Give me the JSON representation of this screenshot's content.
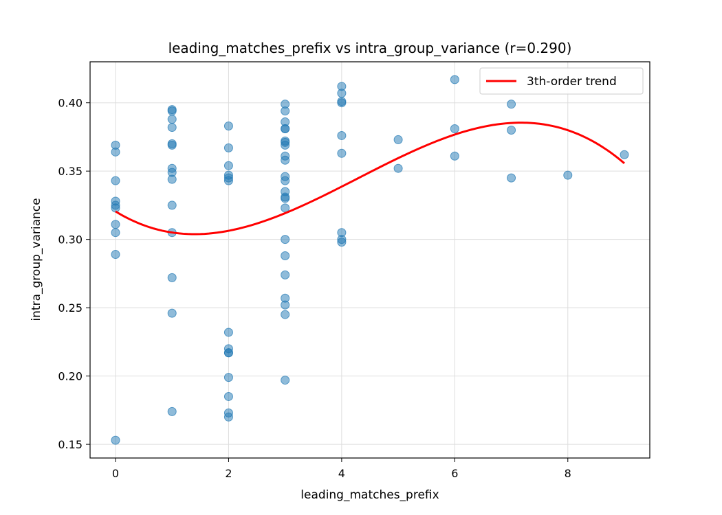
{
  "chart_data": {
    "type": "scatter",
    "title": "leading_matches_prefix vs intra_group_variance (r=0.290)",
    "xlabel": "leading_matches_prefix",
    "ylabel": "intra_group_variance",
    "xlim": [
      -0.45,
      9.45
    ],
    "ylim": [
      0.14,
      0.43
    ],
    "xticks": [
      0,
      2,
      4,
      6,
      8
    ],
    "xtick_labels": [
      "0",
      "2",
      "4",
      "6",
      "8"
    ],
    "yticks": [
      0.15,
      0.2,
      0.25,
      0.3,
      0.35,
      0.4
    ],
    "ytick_labels": [
      "0.15",
      "0.20",
      "0.25",
      "0.30",
      "0.35",
      "0.40"
    ],
    "grid": true,
    "legend_position": "top-right",
    "series": [
      {
        "kind": "scatter",
        "color": "#1f77b4",
        "opacity": 0.5,
        "points": [
          [
            0,
            0.369
          ],
          [
            0,
            0.364
          ],
          [
            0,
            0.343
          ],
          [
            0,
            0.328
          ],
          [
            0,
            0.325
          ],
          [
            0,
            0.323
          ],
          [
            0,
            0.311
          ],
          [
            0,
            0.305
          ],
          [
            0,
            0.289
          ],
          [
            0,
            0.153
          ],
          [
            1,
            0.395
          ],
          [
            1,
            0.394
          ],
          [
            1,
            0.388
          ],
          [
            1,
            0.382
          ],
          [
            1,
            0.37
          ],
          [
            1,
            0.369
          ],
          [
            1,
            0.352
          ],
          [
            1,
            0.349
          ],
          [
            1,
            0.344
          ],
          [
            1,
            0.325
          ],
          [
            1,
            0.305
          ],
          [
            1,
            0.272
          ],
          [
            1,
            0.246
          ],
          [
            1,
            0.174
          ],
          [
            2,
            0.383
          ],
          [
            2,
            0.367
          ],
          [
            2,
            0.354
          ],
          [
            2,
            0.347
          ],
          [
            2,
            0.345
          ],
          [
            2,
            0.343
          ],
          [
            2,
            0.232
          ],
          [
            2,
            0.22
          ],
          [
            2,
            0.217
          ],
          [
            2,
            0.217
          ],
          [
            2,
            0.199
          ],
          [
            2,
            0.185
          ],
          [
            2,
            0.173
          ],
          [
            2,
            0.17
          ],
          [
            3,
            0.399
          ],
          [
            3,
            0.394
          ],
          [
            3,
            0.386
          ],
          [
            3,
            0.381
          ],
          [
            3,
            0.381
          ],
          [
            3,
            0.372
          ],
          [
            3,
            0.371
          ],
          [
            3,
            0.369
          ],
          [
            3,
            0.361
          ],
          [
            3,
            0.358
          ],
          [
            3,
            0.346
          ],
          [
            3,
            0.343
          ],
          [
            3,
            0.335
          ],
          [
            3,
            0.331
          ],
          [
            3,
            0.33
          ],
          [
            3,
            0.323
          ],
          [
            3,
            0.3
          ],
          [
            3,
            0.288
          ],
          [
            3,
            0.274
          ],
          [
            3,
            0.257
          ],
          [
            3,
            0.252
          ],
          [
            3,
            0.245
          ],
          [
            3,
            0.197
          ],
          [
            4,
            0.412
          ],
          [
            4,
            0.407
          ],
          [
            4,
            0.401
          ],
          [
            4,
            0.4
          ],
          [
            4,
            0.376
          ],
          [
            4,
            0.363
          ],
          [
            4,
            0.305
          ],
          [
            4,
            0.3
          ],
          [
            4,
            0.298
          ],
          [
            5,
            0.373
          ],
          [
            5,
            0.352
          ],
          [
            6,
            0.417
          ],
          [
            6,
            0.381
          ],
          [
            6,
            0.361
          ],
          [
            7,
            0.399
          ],
          [
            7,
            0.38
          ],
          [
            7,
            0.345
          ],
          [
            8,
            0.347
          ],
          [
            9,
            0.362
          ]
        ]
      },
      {
        "kind": "line",
        "name": "3th-order trend",
        "color": "#ff0000",
        "x_range": [
          0,
          9
        ],
        "points": [
          [
            0,
            0.3205
          ],
          [
            0.5,
            0.3105
          ],
          [
            1,
            0.3045
          ],
          [
            1.5,
            0.3033
          ],
          [
            2,
            0.3074
          ],
          [
            2.5,
            0.3158
          ],
          [
            3,
            0.3275
          ],
          [
            3.5,
            0.3412
          ],
          [
            4,
            0.3555
          ],
          [
            4.5,
            0.3692
          ],
          [
            5,
            0.3806
          ],
          [
            5.5,
            0.3883
          ],
          [
            6,
            0.391
          ],
          [
            6.5,
            0.388
          ],
          [
            7,
            0.3782
          ],
          [
            7.5,
            0.3606
          ],
          [
            8,
            0.3724
          ],
          [
            8.5,
            0.3543
          ],
          [
            9,
            0.3324
          ]
        ]
      }
    ]
  }
}
